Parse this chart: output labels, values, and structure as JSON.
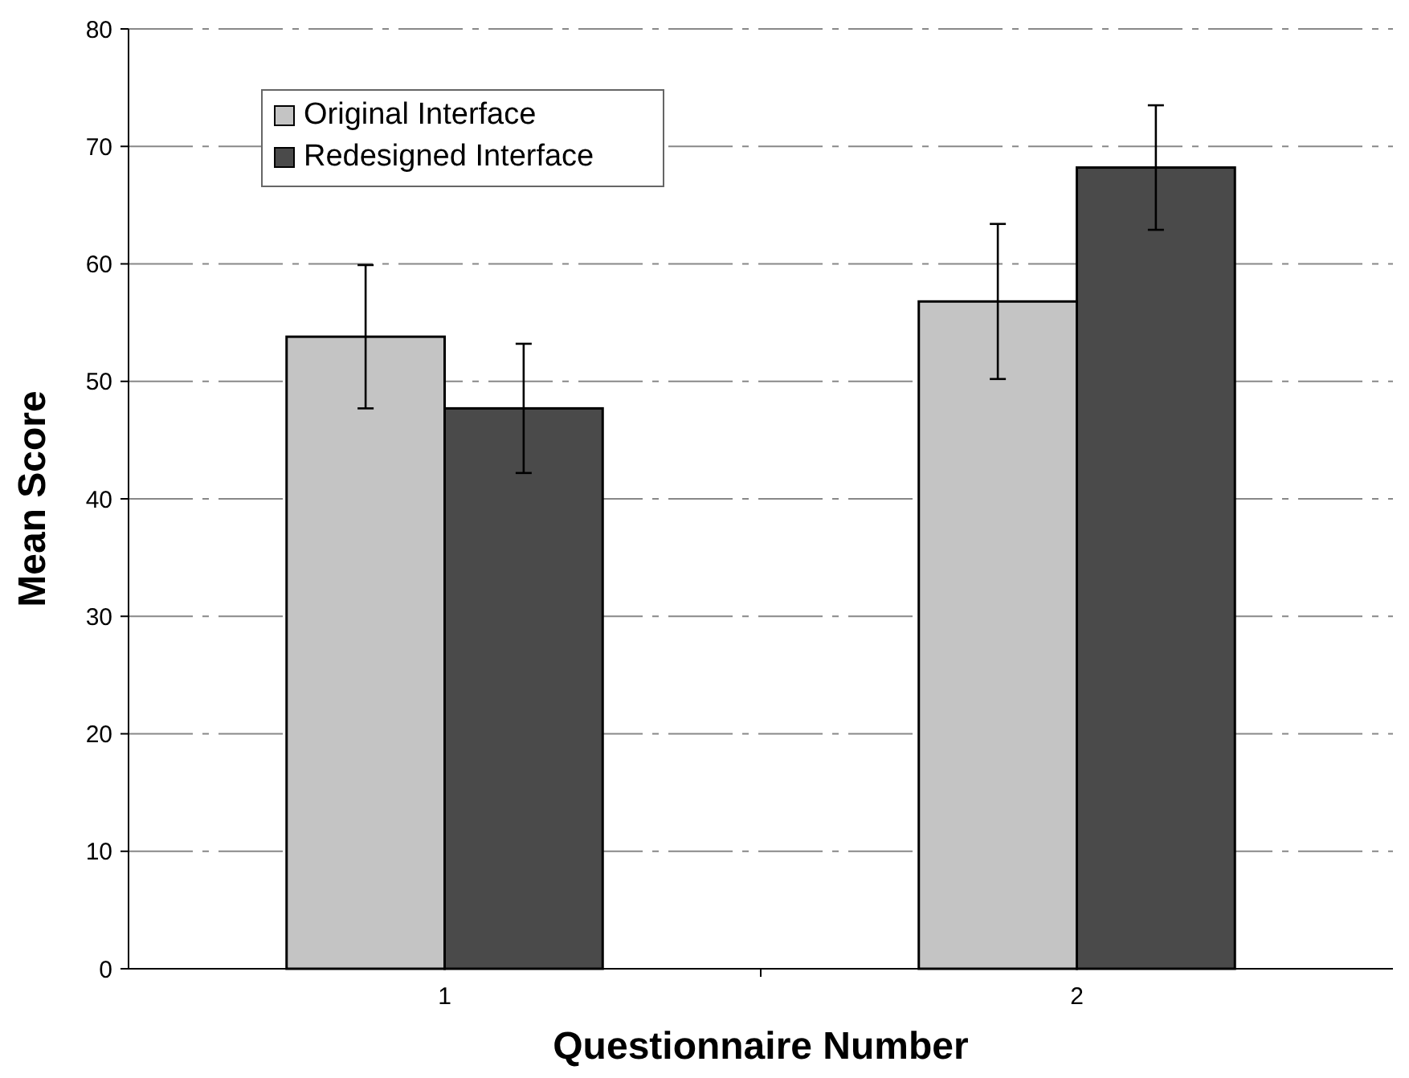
{
  "chart_data": {
    "type": "bar",
    "xlabel": "Questionnaire Number",
    "ylabel": "Mean Score",
    "categories": [
      "1",
      "2"
    ],
    "series": [
      {
        "name": "Original Interface",
        "color": "#c4c4c4",
        "values": [
          53.8,
          56.8
        ],
        "errors": [
          6.1,
          6.6
        ]
      },
      {
        "name": "Redesigned Interface",
        "color": "#4a4a4a",
        "values": [
          47.7,
          68.2
        ],
        "errors": [
          5.5,
          5.3
        ]
      }
    ],
    "ylim": [
      0,
      80
    ],
    "yticks": [
      0,
      10,
      20,
      30,
      40,
      50,
      60,
      70,
      80
    ],
    "grid": "y",
    "legend": "top left"
  }
}
